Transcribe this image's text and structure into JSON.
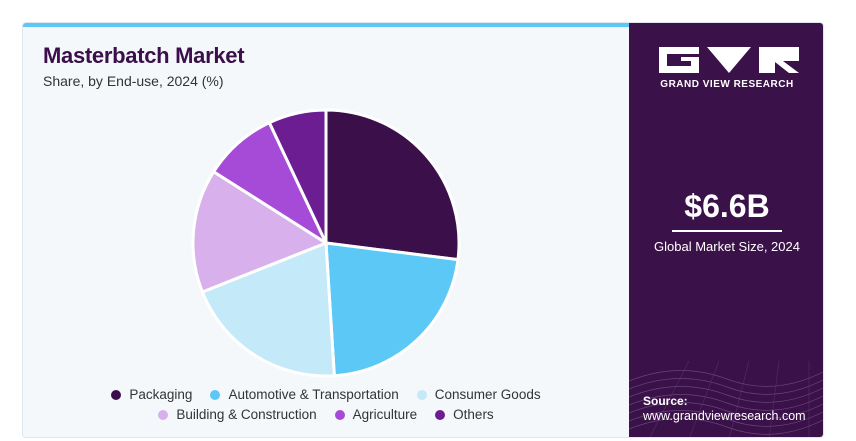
{
  "header": {
    "title": "Masterbatch Market",
    "subtitle": "Share, by End-use, 2024 (%)"
  },
  "chart_data": {
    "type": "pie",
    "title": "Masterbatch Market",
    "subtitle": "Share, by End-use, 2024 (%)",
    "categories": [
      "Packaging",
      "Automotive & Transportation",
      "Consumer Goods",
      "Building & Construction",
      "Agriculture",
      "Others"
    ],
    "values": [
      27,
      22,
      20,
      15,
      9,
      7
    ],
    "colors": [
      "#3b0f4a",
      "#5bc8f5",
      "#c4e9f9",
      "#d7b0ec",
      "#a64ad8",
      "#6d1d92"
    ],
    "start_angle_deg": 0,
    "direction": "clockwise",
    "legend_position": "bottom"
  },
  "legend": {
    "row1": [
      {
        "label": "Packaging",
        "color": "#3b0f4a"
      },
      {
        "label": "Automotive & Transportation",
        "color": "#5bc8f5"
      },
      {
        "label": "Consumer Goods",
        "color": "#c4e9f9"
      }
    ],
    "row2": [
      {
        "label": "Building & Construction",
        "color": "#d7b0ec"
      },
      {
        "label": "Agriculture",
        "color": "#a64ad8"
      },
      {
        "label": "Others",
        "color": "#6d1d92"
      }
    ]
  },
  "sidebar": {
    "brand": "GRAND VIEW RESEARCH",
    "market_value": "$6.6B",
    "market_value_label": "Global Market Size, 2024",
    "source_label": "Source:",
    "source_url": "www.grandviewresearch.com",
    "background_color": "#3b1149"
  }
}
